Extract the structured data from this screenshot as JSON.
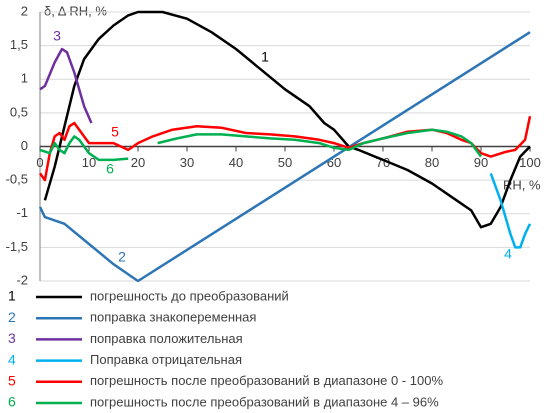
{
  "chart_data": {
    "type": "line",
    "y_axis_label": "δ, Δ RH, %",
    "x_axis_label": "RH, %",
    "xlim": [
      0,
      100
    ],
    "xticks": [
      0,
      10,
      20,
      30,
      40,
      50,
      60,
      70,
      80,
      90,
      100
    ],
    "ylim": [
      -2,
      2
    ],
    "yticks": [
      2,
      {
        "value": 1.5,
        "label": "1,5"
      },
      1,
      {
        "value": 0.5,
        "label": "0,5"
      },
      0,
      {
        "value": -0.5,
        "label": "-0,5"
      },
      -1,
      {
        "value": -1.5,
        "label": "-1,5"
      },
      -2
    ],
    "grid": true,
    "series": [
      {
        "label": "1",
        "name": "погрешность до преобразований",
        "color": "#000000",
        "x": [
          1,
          3,
          5,
          7,
          9,
          12,
          15,
          18,
          20,
          25,
          30,
          35,
          40,
          45,
          50,
          55,
          58,
          60,
          63,
          65,
          70,
          75,
          80,
          85,
          88,
          90,
          92,
          94,
          96,
          98,
          100
        ],
        "values": [
          -0.8,
          -0.3,
          0.3,
          0.9,
          1.3,
          1.6,
          1.8,
          1.95,
          2,
          2,
          1.9,
          1.7,
          1.45,
          1.15,
          0.85,
          0.6,
          0.35,
          0.25,
          0,
          -0.05,
          -0.2,
          -0.35,
          -0.55,
          -0.8,
          -0.95,
          -1.2,
          -1.15,
          -0.9,
          -0.5,
          -0.15,
          0
        ]
      },
      {
        "label": "2",
        "name": "поправка знакопеременная",
        "color": "#2e75b6",
        "x": [
          0,
          1,
          5,
          10,
          15,
          20,
          100
        ],
        "values": [
          -0.9,
          -1.05,
          -1.15,
          -1.45,
          -1.75,
          -2,
          1.7
        ]
      },
      {
        "label": "3",
        "name": "поправка положительная",
        "color": "#7030a0",
        "x": [
          0,
          1,
          3,
          4.5,
          5.5,
          7,
          9,
          10.5
        ],
        "values": [
          0.85,
          0.9,
          1.25,
          1.45,
          1.4,
          1.1,
          0.6,
          0.35
        ]
      },
      {
        "label": "4",
        "name": "Поправка отрицательная",
        "color": "#00b0f0",
        "x": [
          92,
          94,
          96,
          97,
          98,
          99,
          100
        ],
        "values": [
          -0.4,
          -0.8,
          -1.3,
          -1.5,
          -1.5,
          -1.3,
          -1.15
        ]
      },
      {
        "label": "5",
        "name": "погрешность после преобразований в диапазоне 0 - 100%",
        "color": "#ff0000",
        "x": [
          0,
          1,
          2,
          3,
          4,
          5,
          6,
          7,
          8,
          10,
          15,
          18,
          20,
          23,
          27,
          32,
          37,
          42,
          47,
          52,
          57,
          60,
          63,
          66,
          70,
          75,
          80,
          83,
          86,
          88,
          90,
          92,
          95,
          97,
          99,
          100
        ],
        "values": [
          -0.4,
          -0.5,
          -0.1,
          0.15,
          0.2,
          0.1,
          0.3,
          0.35,
          0.25,
          0.05,
          0.05,
          -0.05,
          0.05,
          0.15,
          0.25,
          0.3,
          0.28,
          0.2,
          0.18,
          0.15,
          0.1,
          0.05,
          -0.02,
          0.05,
          0.12,
          0.22,
          0.25,
          0.2,
          0.1,
          0.05,
          -0.1,
          -0.15,
          -0.08,
          -0.05,
          0.1,
          0.45
        ]
      },
      {
        "label": "6",
        "name": "погрешность после преобразований в диапазоне 4 – 96%",
        "color": "#00b050",
        "x": [
          0,
          2,
          3,
          4,
          5,
          6,
          7,
          8,
          10,
          12,
          15,
          18,
          21,
          24,
          28,
          32,
          37,
          42,
          47,
          52,
          57,
          60,
          63,
          66,
          70,
          75,
          80,
          83,
          86,
          88,
          90
        ],
        "values": [
          -0.05,
          -0.1,
          0.05,
          -0.05,
          -0.1,
          0.05,
          0.15,
          0.1,
          -0.1,
          -0.2,
          -0.2,
          -0.18,
          null,
          0.05,
          0.12,
          0.18,
          0.18,
          0.15,
          0.12,
          0.1,
          0.05,
          -0.02,
          -0.05,
          0.05,
          0.12,
          0.2,
          0.25,
          0.22,
          0.15,
          0.05,
          -0.15
        ]
      }
    ]
  }
}
